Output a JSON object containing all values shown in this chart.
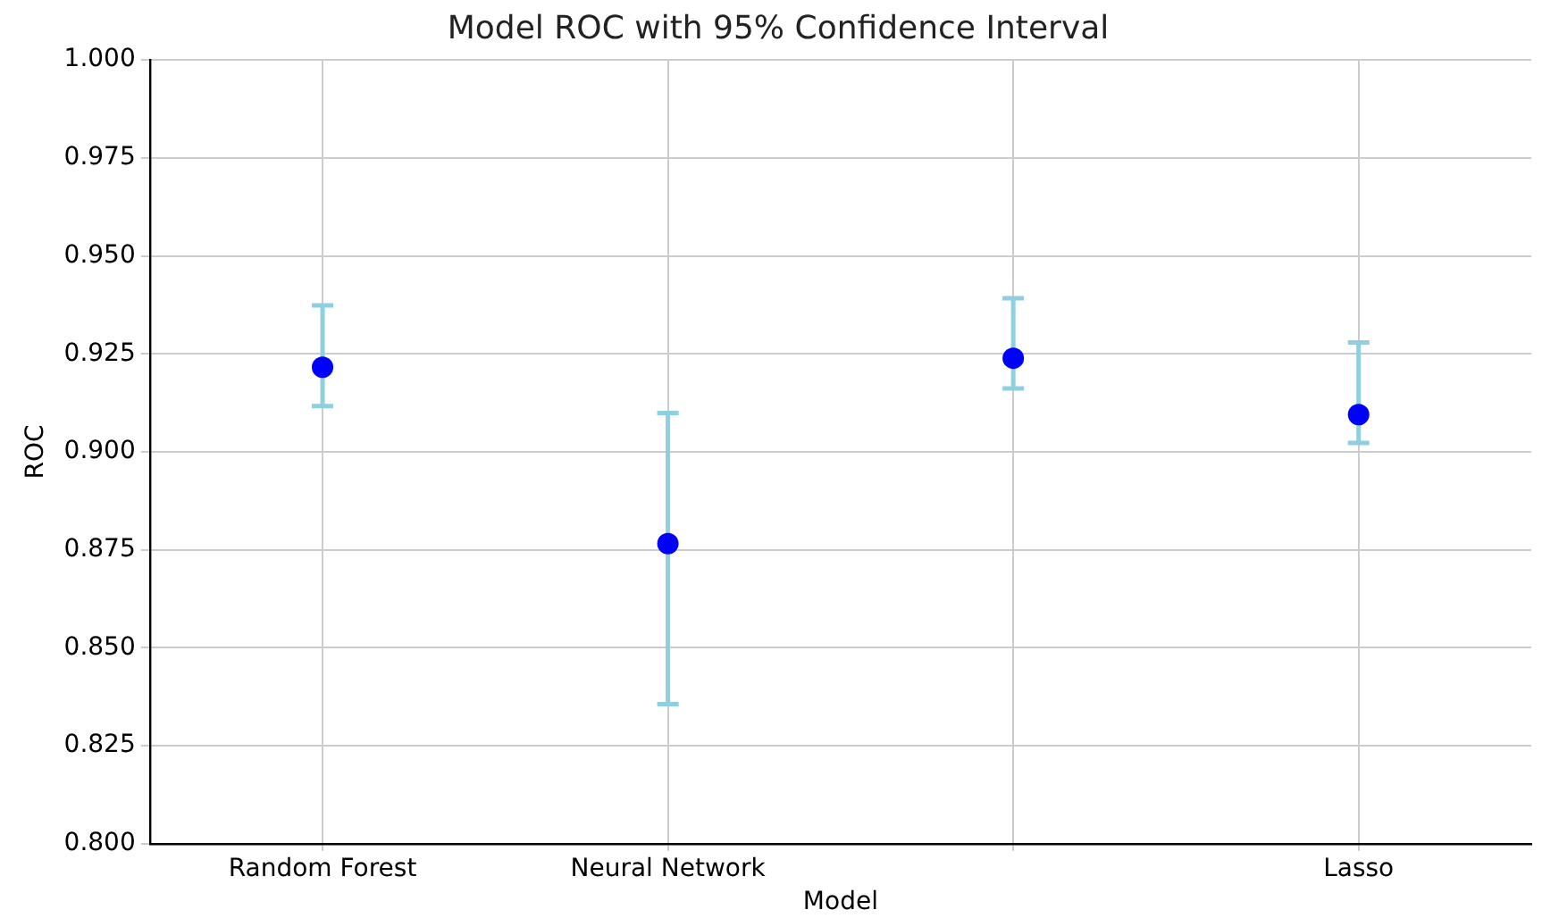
{
  "chart_data": {
    "type": "scatter",
    "title": "Model ROC with 95% Confidence Interval",
    "xlabel": "Model",
    "ylabel": "ROC",
    "categories": [
      "Random Forest",
      "Neural Network",
      null,
      "Lasso"
    ],
    "series": [
      {
        "color": "#0000ff",
        "values": [
          0.9216,
          0.8766,
          0.9239,
          0.9095
        ],
        "errors": [
          [
            0.9117,
            0.9374
          ],
          [
            0.8356,
            0.9099
          ],
          [
            0.9162,
            0.9392
          ],
          [
            0.9023,
            0.9279
          ]
        ]
      }
    ],
    "ylim": [
      0.8,
      1.0
    ],
    "yticks": [
      {
        "value": 0.8,
        "label": "0.800"
      },
      {
        "value": 0.825,
        "label": "0.825"
      },
      {
        "value": 0.85,
        "label": "0.850"
      },
      {
        "value": 0.875,
        "label": "0.875"
      },
      {
        "value": 0.9,
        "label": "0.900"
      },
      {
        "value": 0.925,
        "label": "0.925"
      },
      {
        "value": 0.95,
        "label": "0.950"
      },
      {
        "value": 0.975,
        "label": "0.975"
      },
      {
        "value": 1.0,
        "label": "1.000"
      }
    ],
    "grid": true,
    "marker": "circle",
    "legend": false
  }
}
